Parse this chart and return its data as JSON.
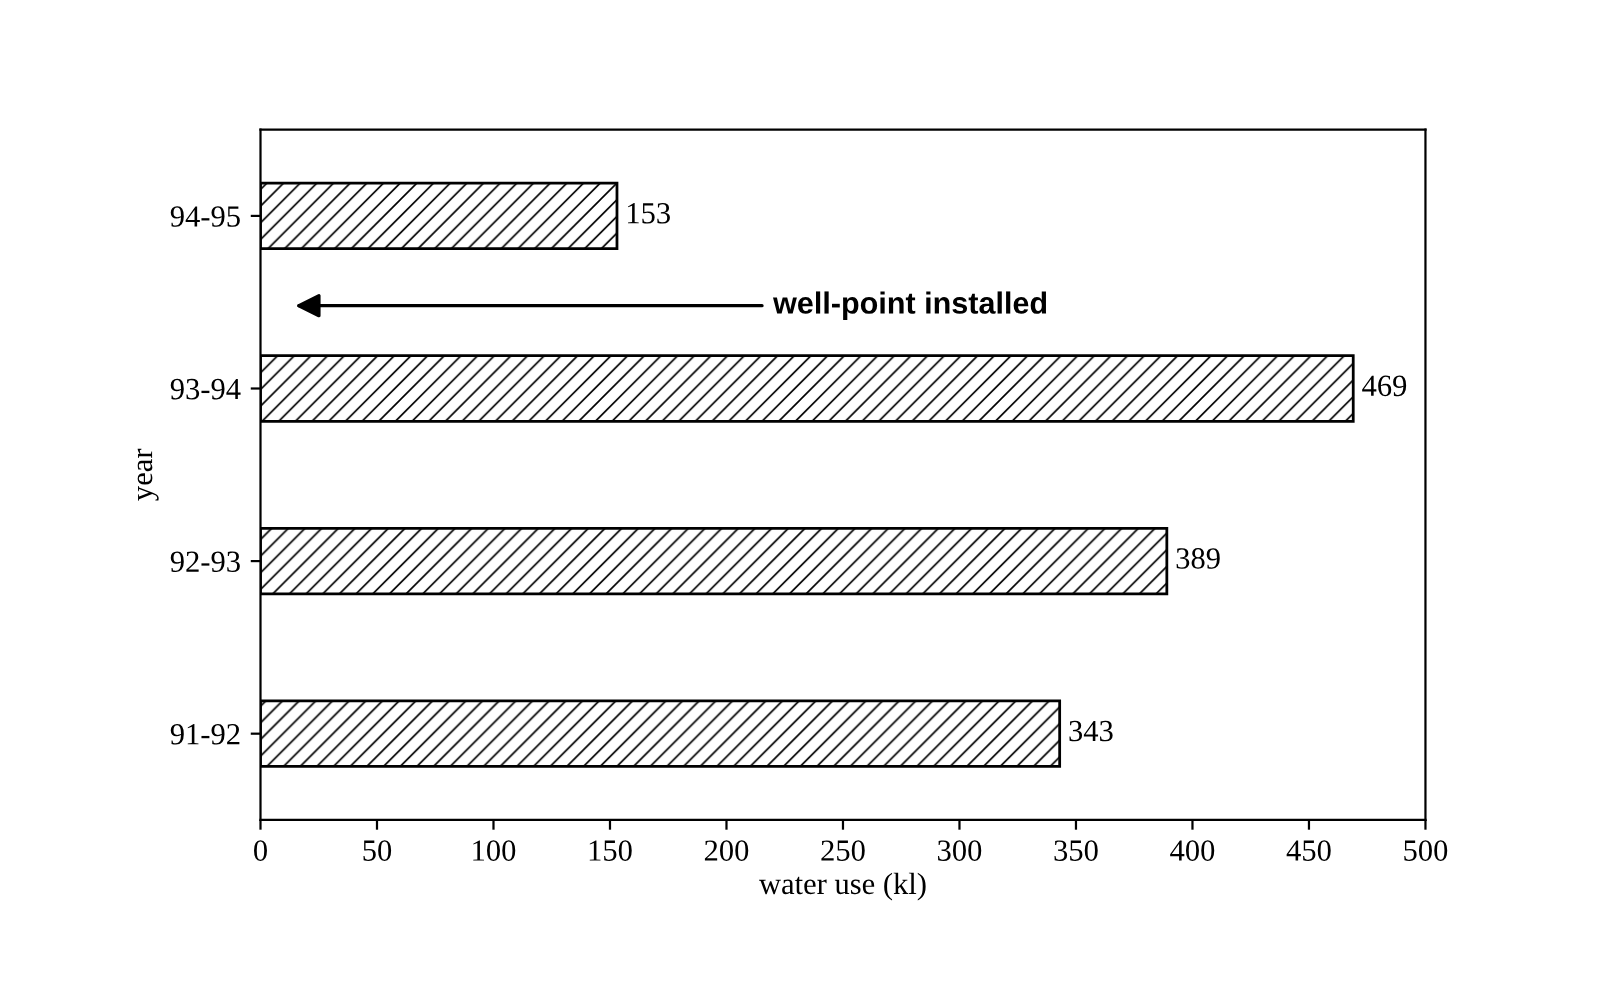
{
  "chart_data": {
    "type": "bar",
    "orientation": "horizontal",
    "xlabel": "water use (kl)",
    "ylabel": "year",
    "categories": [
      "94-95",
      "93-94",
      "92-93",
      "91-92"
    ],
    "values": [
      153,
      469,
      389,
      343
    ],
    "color": "#000000",
    "data_labels": true,
    "xlim": [
      0,
      500
    ],
    "xticks": [
      0,
      50,
      100,
      150,
      200,
      250,
      300,
      350,
      400,
      450,
      500
    ],
    "grid": false,
    "annotations": [
      "well-point installed"
    ]
  }
}
